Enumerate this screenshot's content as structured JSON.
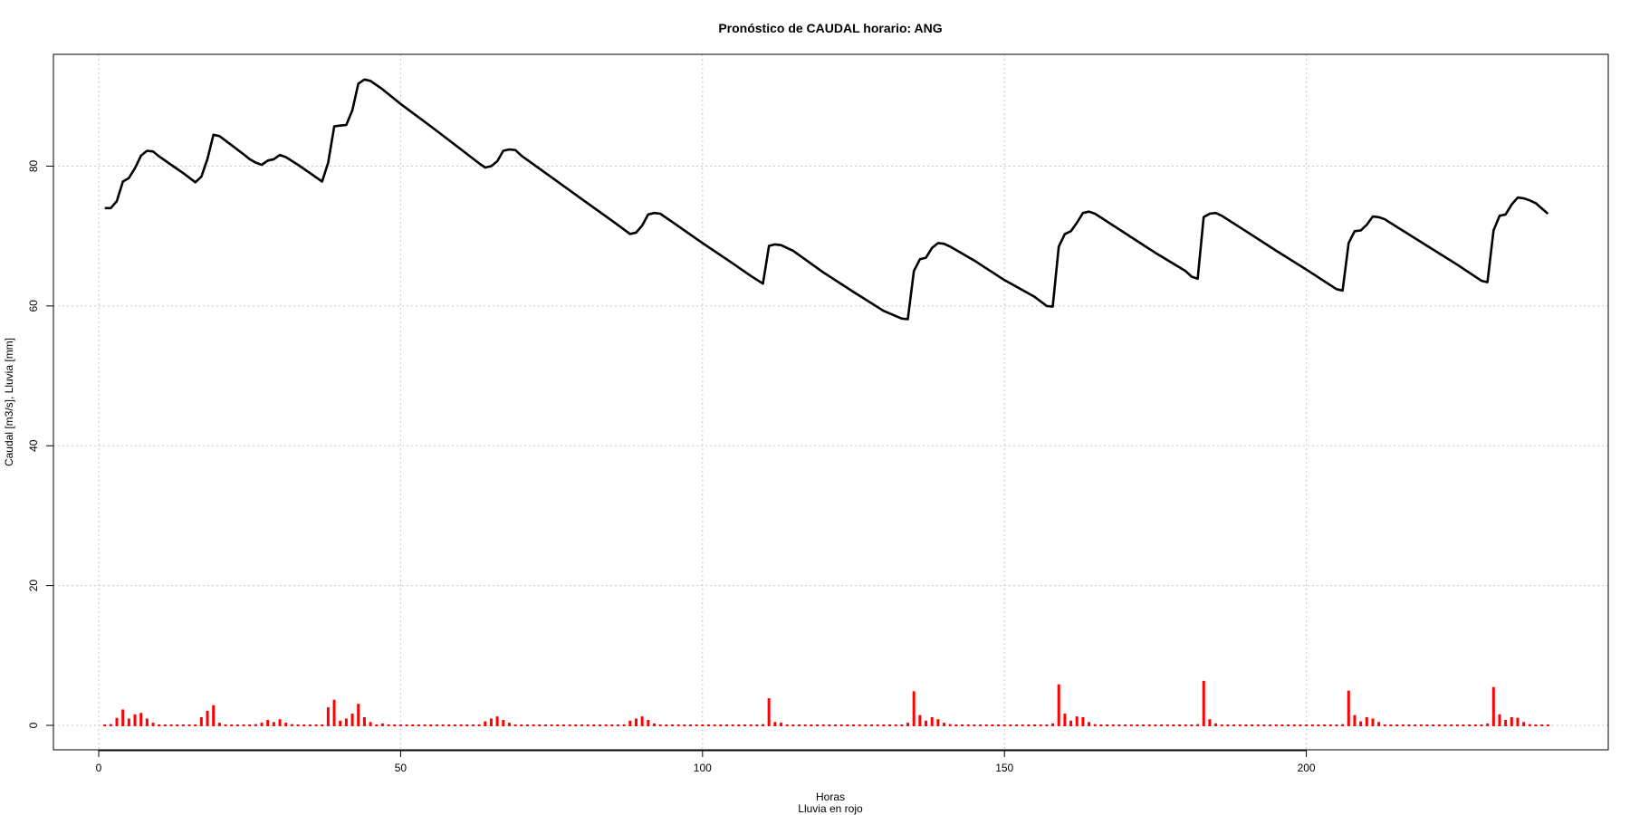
{
  "chart_data": {
    "type": "line",
    "title": "Pronóstico de CAUDAL horario: ANG",
    "xlabel": "Horas",
    "xlabel_sub": "Lluvia en rojo",
    "ylabel": "Caudal [m3/s], Lluvia [mm]",
    "xlim": [
      -7.5,
      250
    ],
    "ylim": [
      -3.5,
      96
    ],
    "xticks": [
      0,
      50,
      100,
      150,
      200
    ],
    "yticks": [
      0,
      20,
      40,
      60,
      80
    ],
    "grid": true,
    "colors": {
      "caudal": "#000000",
      "lluvia": "#ff0000",
      "grid": "#c8c8c8"
    },
    "caudal": [
      [
        1,
        74.0
      ],
      [
        2,
        74.0
      ],
      [
        3,
        75.0
      ],
      [
        4,
        77.8
      ],
      [
        5,
        78.3
      ],
      [
        6,
        79.7
      ],
      [
        7,
        81.5
      ],
      [
        8,
        82.2
      ],
      [
        9,
        82.1
      ],
      [
        10,
        81.4
      ],
      [
        12,
        80.2
      ],
      [
        14,
        79.0
      ],
      [
        16,
        77.7
      ],
      [
        17,
        78.5
      ],
      [
        18,
        81.0
      ],
      [
        19,
        84.5
      ],
      [
        20,
        84.3
      ],
      [
        22,
        83.0
      ],
      [
        24,
        81.7
      ],
      [
        25,
        81.0
      ],
      [
        26,
        80.5
      ],
      [
        27,
        80.2
      ],
      [
        28,
        80.8
      ],
      [
        29,
        81.0
      ],
      [
        30,
        81.6
      ],
      [
        31,
        81.3
      ],
      [
        33,
        80.2
      ],
      [
        35,
        79.0
      ],
      [
        37,
        77.8
      ],
      [
        38,
        80.5
      ],
      [
        39,
        85.7
      ],
      [
        40,
        85.8
      ],
      [
        41,
        85.9
      ],
      [
        42,
        88.0
      ],
      [
        43,
        91.8
      ],
      [
        44,
        92.4
      ],
      [
        45,
        92.2
      ],
      [
        47,
        91.0
      ],
      [
        50,
        88.9
      ],
      [
        55,
        85.7
      ],
      [
        60,
        82.4
      ],
      [
        63,
        80.4
      ],
      [
        64,
        79.8
      ],
      [
        65,
        80.0
      ],
      [
        66,
        80.7
      ],
      [
        67,
        82.2
      ],
      [
        68,
        82.4
      ],
      [
        69,
        82.3
      ],
      [
        70,
        81.5
      ],
      [
        75,
        78.4
      ],
      [
        80,
        75.3
      ],
      [
        85,
        72.2
      ],
      [
        88,
        70.3
      ],
      [
        89,
        70.5
      ],
      [
        90,
        71.5
      ],
      [
        91,
        73.1
      ],
      [
        92,
        73.3
      ],
      [
        93,
        73.2
      ],
      [
        95,
        72.0
      ],
      [
        100,
        69.0
      ],
      [
        105,
        66.1
      ],
      [
        108,
        64.3
      ],
      [
        110,
        63.2
      ],
      [
        111,
        68.6
      ],
      [
        112,
        68.8
      ],
      [
        113,
        68.7
      ],
      [
        115,
        67.9
      ],
      [
        120,
        64.8
      ],
      [
        125,
        62.0
      ],
      [
        130,
        59.3
      ],
      [
        133,
        58.2
      ],
      [
        134,
        58.1
      ],
      [
        135,
        65.0
      ],
      [
        136,
        66.7
      ],
      [
        137,
        66.9
      ],
      [
        138,
        68.3
      ],
      [
        139,
        69.0
      ],
      [
        140,
        68.9
      ],
      [
        141,
        68.5
      ],
      [
        145,
        66.5
      ],
      [
        150,
        63.7
      ],
      [
        155,
        61.3
      ],
      [
        157,
        60.0
      ],
      [
        158,
        59.9
      ],
      [
        159,
        68.5
      ],
      [
        160,
        70.3
      ],
      [
        161,
        70.7
      ],
      [
        162,
        71.9
      ],
      [
        163,
        73.3
      ],
      [
        164,
        73.5
      ],
      [
        165,
        73.2
      ],
      [
        170,
        70.4
      ],
      [
        175,
        67.6
      ],
      [
        180,
        65.0
      ],
      [
        181,
        64.2
      ],
      [
        182,
        63.9
      ],
      [
        183,
        72.7
      ],
      [
        184,
        73.2
      ],
      [
        185,
        73.3
      ],
      [
        186,
        72.9
      ],
      [
        190,
        70.7
      ],
      [
        195,
        67.9
      ],
      [
        200,
        65.2
      ],
      [
        205,
        62.4
      ],
      [
        206,
        62.2
      ],
      [
        207,
        69.0
      ],
      [
        208,
        70.7
      ],
      [
        209,
        70.8
      ],
      [
        210,
        71.6
      ],
      [
        211,
        72.8
      ],
      [
        212,
        72.7
      ],
      [
        213,
        72.4
      ],
      [
        215,
        71.3
      ],
      [
        220,
        68.6
      ],
      [
        225,
        65.9
      ],
      [
        229,
        63.6
      ],
      [
        230,
        63.4
      ],
      [
        231,
        70.8
      ],
      [
        232,
        72.9
      ],
      [
        233,
        73.1
      ],
      [
        234,
        74.5
      ],
      [
        235,
        75.5
      ],
      [
        236,
        75.4
      ],
      [
        237,
        75.1
      ],
      [
        238,
        74.7
      ],
      [
        240,
        73.2
      ]
    ],
    "lluvia": [
      [
        1,
        0
      ],
      [
        2,
        0.3
      ],
      [
        3,
        1.2
      ],
      [
        4,
        2.4
      ],
      [
        5,
        1.1
      ],
      [
        6,
        1.7
      ],
      [
        7,
        1.9
      ],
      [
        8,
        1.1
      ],
      [
        9,
        0.5
      ],
      [
        10,
        0.1
      ],
      [
        11,
        0
      ],
      [
        12,
        0
      ],
      [
        13,
        0
      ],
      [
        14,
        0
      ],
      [
        15,
        0
      ],
      [
        16,
        0
      ],
      [
        17,
        1.3
      ],
      [
        18,
        2.2
      ],
      [
        19,
        3.0
      ],
      [
        20,
        0.5
      ],
      [
        21,
        0.1
      ],
      [
        22,
        0
      ],
      [
        23,
        0
      ],
      [
        24,
        0
      ],
      [
        25,
        0
      ],
      [
        26,
        0.3
      ],
      [
        27,
        0.5
      ],
      [
        28,
        0.9
      ],
      [
        29,
        0.6
      ],
      [
        30,
        1.0
      ],
      [
        31,
        0.5
      ],
      [
        32,
        0.3
      ],
      [
        33,
        0.1
      ],
      [
        34,
        0
      ],
      [
        35,
        0
      ],
      [
        36,
        0
      ],
      [
        37,
        0
      ],
      [
        38,
        2.7
      ],
      [
        39,
        3.8
      ],
      [
        40,
        0.8
      ],
      [
        41,
        1.1
      ],
      [
        42,
        1.8
      ],
      [
        43,
        3.2
      ],
      [
        44,
        1.3
      ],
      [
        45,
        0.6
      ],
      [
        46,
        0.2
      ],
      [
        47,
        0.4
      ],
      [
        48,
        0
      ],
      [
        49,
        0
      ],
      [
        50,
        0
      ],
      [
        55,
        0
      ],
      [
        60,
        0
      ],
      [
        63,
        0.1
      ],
      [
        64,
        0.7
      ],
      [
        65,
        1.1
      ],
      [
        66,
        1.4
      ],
      [
        67,
        0.9
      ],
      [
        68,
        0.5
      ],
      [
        69,
        0.1
      ],
      [
        70,
        0
      ],
      [
        75,
        0
      ],
      [
        80,
        0
      ],
      [
        85,
        0
      ],
      [
        87,
        0.2
      ],
      [
        88,
        0.8
      ],
      [
        89,
        1.1
      ],
      [
        90,
        1.4
      ],
      [
        91,
        0.9
      ],
      [
        92,
        0.4
      ],
      [
        93,
        0
      ],
      [
        95,
        0
      ],
      [
        100,
        0
      ],
      [
        105,
        0
      ],
      [
        109,
        0.1
      ],
      [
        110,
        0.3
      ],
      [
        111,
        4.0
      ],
      [
        112,
        0.6
      ],
      [
        113,
        0.5
      ],
      [
        114,
        0.2
      ],
      [
        115,
        0.1
      ],
      [
        116,
        0
      ],
      [
        120,
        0
      ],
      [
        125,
        0
      ],
      [
        130,
        0
      ],
      [
        133,
        0.2
      ],
      [
        134,
        0.5
      ],
      [
        135,
        5.0
      ],
      [
        136,
        1.6
      ],
      [
        137,
        0.8
      ],
      [
        138,
        1.3
      ],
      [
        139,
        1.0
      ],
      [
        140,
        0.5
      ],
      [
        141,
        0.3
      ],
      [
        142,
        0
      ],
      [
        145,
        0
      ],
      [
        150,
        0
      ],
      [
        155,
        0
      ],
      [
        157,
        0.1
      ],
      [
        158,
        0.4
      ],
      [
        159,
        6.0
      ],
      [
        160,
        1.8
      ],
      [
        161,
        0.8
      ],
      [
        162,
        1.4
      ],
      [
        163,
        1.3
      ],
      [
        164,
        0.6
      ],
      [
        165,
        0.3
      ],
      [
        166,
        0
      ],
      [
        170,
        0
      ],
      [
        175,
        0
      ],
      [
        180,
        0
      ],
      [
        182,
        0.3
      ],
      [
        183,
        6.5
      ],
      [
        184,
        1.0
      ],
      [
        185,
        0.4
      ],
      [
        186,
        0.2
      ],
      [
        187,
        0
      ],
      [
        190,
        0
      ],
      [
        195,
        0
      ],
      [
        200,
        0
      ],
      [
        205,
        0
      ],
      [
        206,
        0.3
      ],
      [
        207,
        5.1
      ],
      [
        208,
        1.6
      ],
      [
        209,
        0.7
      ],
      [
        210,
        1.3
      ],
      [
        211,
        1.1
      ],
      [
        212,
        0.6
      ],
      [
        213,
        0.2
      ],
      [
        214,
        0
      ],
      [
        215,
        0
      ],
      [
        220,
        0
      ],
      [
        225,
        0
      ],
      [
        229,
        0.1
      ],
      [
        230,
        0.4
      ],
      [
        231,
        5.6
      ],
      [
        232,
        1.7
      ],
      [
        233,
        0.9
      ],
      [
        234,
        1.3
      ],
      [
        235,
        1.2
      ],
      [
        236,
        0.6
      ],
      [
        237,
        0.3
      ],
      [
        238,
        0.1
      ],
      [
        239,
        0
      ],
      [
        240,
        0
      ]
    ]
  }
}
